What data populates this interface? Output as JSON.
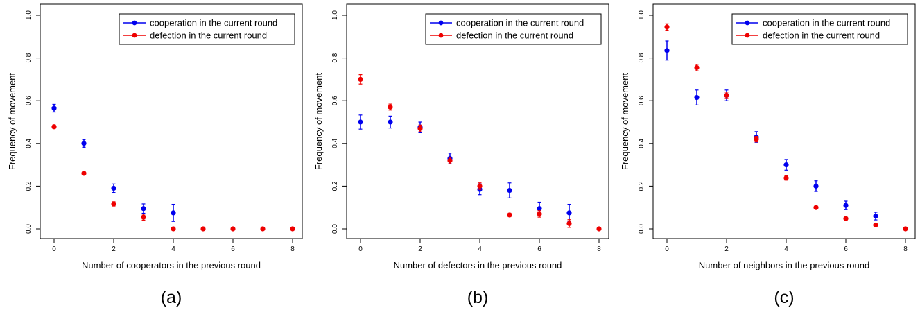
{
  "chart_data": [
    {
      "type": "scatter",
      "panel_label": "(a)",
      "xlabel": "Number of cooperators in the previous round",
      "ylabel": "Frequency of movement",
      "xlim": [
        0,
        8
      ],
      "ylim": [
        0,
        1
      ],
      "xticks": [
        0,
        2,
        4,
        6,
        8
      ],
      "xtick_labels": [
        "0",
        "2",
        "4",
        "6",
        "8"
      ],
      "yticks": [
        0,
        0.2,
        0.4,
        0.6,
        0.8,
        1.0
      ],
      "ytick_labels": [
        "0.0",
        "0.2",
        "0.4",
        "0.6",
        "0.8",
        "1.0"
      ],
      "legend_position": "top-right",
      "series": [
        {
          "name": "cooperation in the current round",
          "color": "#0000ee",
          "x": [
            0,
            1,
            2,
            3,
            4
          ],
          "y": [
            0.565,
            0.4,
            0.19,
            0.095,
            0.075
          ],
          "err": [
            0.018,
            0.018,
            0.02,
            0.022,
            0.04
          ]
        },
        {
          "name": "defection in the current round",
          "color": "#ee0000",
          "x": [
            0,
            1,
            2,
            3,
            4,
            5,
            6,
            7,
            8
          ],
          "y": [
            0.478,
            0.26,
            0.117,
            0.055,
            0.0,
            0.0,
            0.0,
            0.0,
            0.0
          ],
          "err": [
            0.008,
            0.008,
            0.01,
            0.014,
            0.003,
            0.002,
            0.002,
            0.002,
            0.002
          ]
        }
      ]
    },
    {
      "type": "scatter",
      "panel_label": "(b)",
      "xlabel": "Number of defectors in the previous round",
      "ylabel": "Frequency of movement",
      "xlim": [
        0,
        8
      ],
      "ylim": [
        0,
        1
      ],
      "xticks": [
        0,
        2,
        4,
        6,
        8
      ],
      "xtick_labels": [
        "0",
        "2",
        "4",
        "6",
        "8"
      ],
      "yticks": [
        0,
        0.2,
        0.4,
        0.6,
        0.8,
        1.0
      ],
      "ytick_labels": [
        "0.0",
        "0.2",
        "0.4",
        "0.6",
        "0.8",
        "1.0"
      ],
      "legend_position": "top-right",
      "series": [
        {
          "name": "cooperation in the current round",
          "color": "#0000ee",
          "x": [
            0,
            1,
            2,
            3,
            4,
            5,
            6,
            7
          ],
          "y": [
            0.5,
            0.5,
            0.475,
            0.33,
            0.185,
            0.18,
            0.095,
            0.075
          ],
          "err": [
            0.033,
            0.028,
            0.025,
            0.025,
            0.025,
            0.035,
            0.03,
            0.04
          ]
        },
        {
          "name": "defection in the current round",
          "color": "#ee0000",
          "x": [
            0,
            1,
            2,
            3,
            4,
            5,
            6,
            7,
            8
          ],
          "y": [
            0.7,
            0.57,
            0.47,
            0.32,
            0.2,
            0.065,
            0.07,
            0.025,
            0.0
          ],
          "err": [
            0.022,
            0.014,
            0.016,
            0.016,
            0.015,
            0.008,
            0.015,
            0.018,
            0.003
          ]
        }
      ]
    },
    {
      "type": "scatter",
      "panel_label": "(c)",
      "xlabel": "Number of neighbors in the previous round",
      "ylabel": "Frequency of movement",
      "xlim": [
        0,
        8
      ],
      "ylim": [
        0,
        1
      ],
      "xticks": [
        0,
        2,
        4,
        6,
        8
      ],
      "xtick_labels": [
        "0",
        "2",
        "4",
        "6",
        "8"
      ],
      "yticks": [
        0,
        0.2,
        0.4,
        0.6,
        0.8,
        1.0
      ],
      "ytick_labels": [
        "0.0",
        "0.2",
        "0.4",
        "0.6",
        "0.8",
        "1.0"
      ],
      "legend_position": "top-right",
      "series": [
        {
          "name": "cooperation in the current round",
          "color": "#0000ee",
          "x": [
            0,
            1,
            2,
            3,
            4,
            5,
            6,
            7
          ],
          "y": [
            0.835,
            0.615,
            0.625,
            0.43,
            0.3,
            0.2,
            0.11,
            0.06
          ],
          "err": [
            0.045,
            0.035,
            0.025,
            0.025,
            0.025,
            0.025,
            0.02,
            0.018
          ]
        },
        {
          "name": "defection in the current round",
          "color": "#ee0000",
          "x": [
            0,
            1,
            2,
            3,
            4,
            5,
            6,
            7,
            8
          ],
          "y": [
            0.945,
            0.755,
            0.625,
            0.42,
            0.238,
            0.1,
            0.048,
            0.018,
            0.0
          ],
          "err": [
            0.015,
            0.015,
            0.015,
            0.013,
            0.01,
            0.006,
            0.005,
            0.004,
            0.002
          ]
        }
      ]
    }
  ]
}
